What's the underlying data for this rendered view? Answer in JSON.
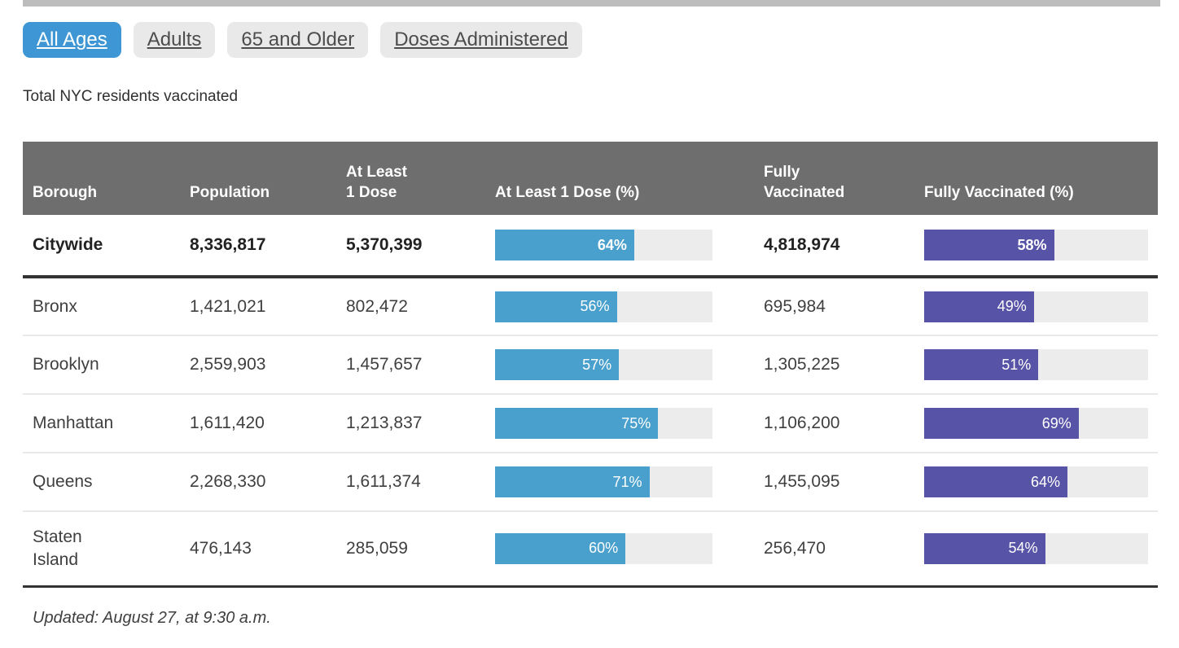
{
  "page": {
    "subtitle": "Total NYC residents vaccinated",
    "updated": "Updated: August 27, at 9:30 a.m."
  },
  "tabs": [
    {
      "label": "All Ages",
      "active": true
    },
    {
      "label": "Adults",
      "active": false
    },
    {
      "label": "65 and Older",
      "active": false
    },
    {
      "label": "Doses Administered",
      "active": false
    }
  ],
  "table": {
    "columns": [
      "Borough",
      "Population",
      "At Least\n1 Dose",
      "At Least 1 Dose (%)",
      "Fully\nVaccinated",
      "Fully Vaccinated (%)"
    ],
    "rows": [
      {
        "borough": "Citywide",
        "population": "8,336,817",
        "dose1": "5,370,399",
        "dose1_pct": 64,
        "dose1_pct_label": "64%",
        "fully": "4,818,974",
        "fully_pct": 58,
        "fully_pct_label": "58%"
      },
      {
        "borough": "Bronx",
        "population": "1,421,021",
        "dose1": "802,472",
        "dose1_pct": 56,
        "dose1_pct_label": "56%",
        "fully": "695,984",
        "fully_pct": 49,
        "fully_pct_label": "49%"
      },
      {
        "borough": "Brooklyn",
        "population": "2,559,903",
        "dose1": "1,457,657",
        "dose1_pct": 57,
        "dose1_pct_label": "57%",
        "fully": "1,305,225",
        "fully_pct": 51,
        "fully_pct_label": "51%"
      },
      {
        "borough": "Manhattan",
        "population": "1,611,420",
        "dose1": "1,213,837",
        "dose1_pct": 75,
        "dose1_pct_label": "75%",
        "fully": "1,106,200",
        "fully_pct": 69,
        "fully_pct_label": "69%"
      },
      {
        "borough": "Queens",
        "population": "2,268,330",
        "dose1": "1,611,374",
        "dose1_pct": 71,
        "dose1_pct_label": "71%",
        "fully": "1,455,095",
        "fully_pct": 64,
        "fully_pct_label": "64%"
      },
      {
        "borough": "Staten Island",
        "population": "476,143",
        "dose1": "285,059",
        "dose1_pct": 60,
        "dose1_pct_label": "60%",
        "fully": "256,470",
        "fully_pct": 54,
        "fully_pct_label": "54%"
      }
    ]
  },
  "chart_data": {
    "type": "bar",
    "categories": [
      "Citywide",
      "Bronx",
      "Brooklyn",
      "Manhattan",
      "Queens",
      "Staten Island"
    ],
    "series": [
      {
        "name": "At Least 1 Dose (%)",
        "values": [
          64,
          56,
          57,
          75,
          71,
          60
        ],
        "color": "#4aa0cd"
      },
      {
        "name": "Fully Vaccinated (%)",
        "values": [
          58,
          49,
          51,
          69,
          64,
          54
        ],
        "color": "#5753a6"
      }
    ],
    "xlim": [
      0,
      100
    ]
  },
  "colors": {
    "dose1_bar": "#4aa0cd",
    "fully_bar": "#5753a6",
    "bar_track": "#ececec",
    "header_bg": "#6e6e6e",
    "active_tab_bg": "#3e97d4",
    "inactive_tab_bg": "#e9e9e9",
    "top_bar": "#bdbdbd"
  }
}
